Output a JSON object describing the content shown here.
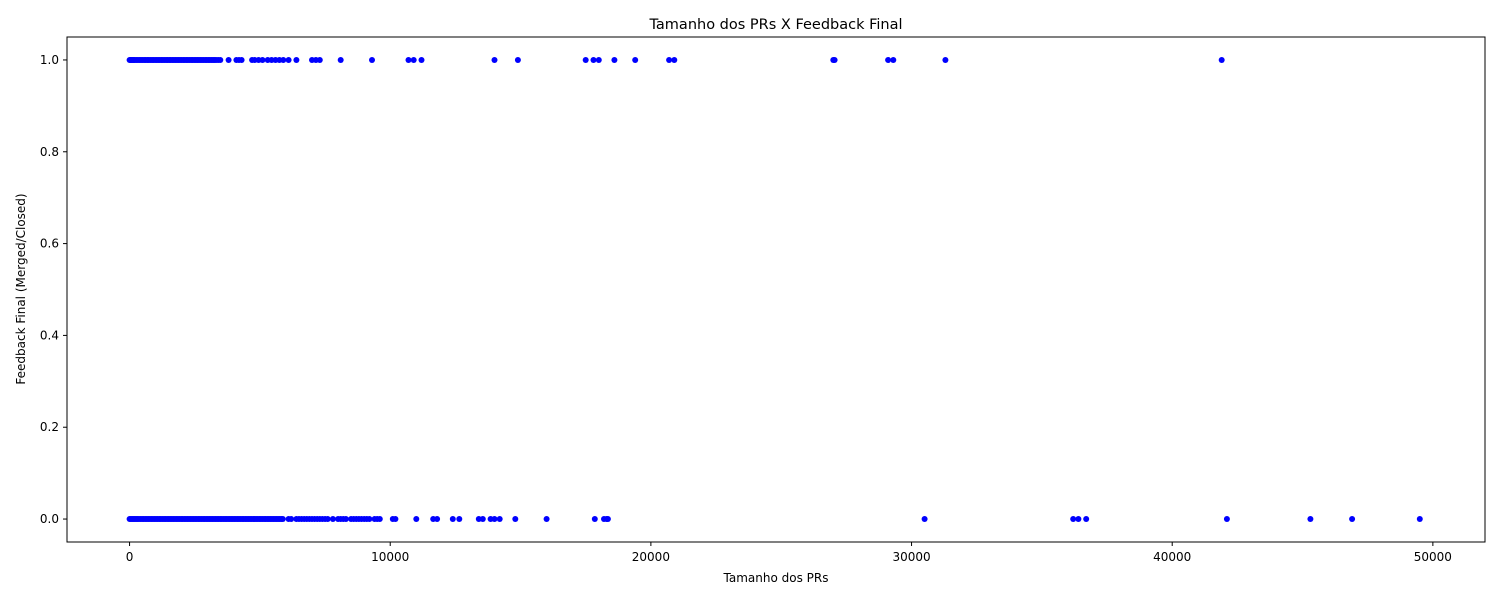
{
  "chart_data": {
    "type": "scatter",
    "title": "Tamanho dos PRs X Feedback Final",
    "xlabel": "Tamanho dos PRs",
    "ylabel": "Feedback Final (Merged/Closed)",
    "xlim": [
      -2400,
      52000
    ],
    "ylim": [
      -0.05,
      1.05
    ],
    "xticks": [
      0,
      10000,
      20000,
      30000,
      40000,
      50000
    ],
    "xtick_labels": [
      "0",
      "10000",
      "20000",
      "30000",
      "40000",
      "50000"
    ],
    "yticks": [
      0.0,
      0.2,
      0.4,
      0.6,
      0.8,
      1.0
    ],
    "ytick_labels": [
      "0.0",
      "0.2",
      "0.4",
      "0.6",
      "0.8",
      "1.0"
    ],
    "grid": false,
    "marker_color": "#0000ff",
    "series": [
      {
        "values_y": 1,
        "x": [
          0,
          40,
          80,
          120,
          160,
          200,
          260,
          320,
          380,
          440,
          500,
          560,
          620,
          680,
          740,
          800,
          860,
          920,
          980,
          1040,
          1100,
          1160,
          1220,
          1280,
          1340,
          1400,
          1460,
          1520,
          1580,
          1640,
          1700,
          1760,
          1820,
          1880,
          1940,
          2000,
          2060,
          2120,
          2180,
          2240,
          2300,
          2360,
          2420,
          2480,
          2540,
          2600,
          2660,
          2720,
          2780,
          2840,
          2900,
          2960,
          3020,
          3080,
          3140,
          3200,
          3260,
          3320,
          3400,
          3480,
          3800,
          4100,
          4200,
          4300,
          4700,
          4800,
          4950,
          5100,
          5300,
          5450,
          5600,
          5750,
          5900,
          6100,
          6400,
          7000,
          7150,
          7300,
          8100,
          9300,
          10700,
          10900,
          11200,
          14000,
          14900,
          17500,
          17800,
          18000,
          18600,
          19400,
          20700,
          20900,
          27000,
          27050,
          29100,
          29300,
          31300,
          41900
        ]
      },
      {
        "values_y": 0,
        "x": [
          0,
          50,
          100,
          150,
          200,
          250,
          300,
          360,
          420,
          480,
          540,
          600,
          660,
          720,
          780,
          840,
          900,
          960,
          1020,
          1080,
          1140,
          1200,
          1260,
          1320,
          1380,
          1440,
          1500,
          1560,
          1620,
          1680,
          1740,
          1800,
          1860,
          1920,
          1980,
          2040,
          2100,
          2160,
          2220,
          2280,
          2340,
          2400,
          2460,
          2520,
          2580,
          2640,
          2700,
          2760,
          2820,
          2880,
          2940,
          3000,
          3060,
          3120,
          3180,
          3240,
          3300,
          3360,
          3420,
          3480,
          3540,
          3600,
          3660,
          3720,
          3780,
          3840,
          3900,
          3960,
          4020,
          4080,
          4140,
          4200,
          4260,
          4320,
          4380,
          4440,
          4500,
          4560,
          4620,
          4680,
          4740,
          4800,
          4860,
          4920,
          4980,
          5040,
          5100,
          5160,
          5220,
          5280,
          5340,
          5400,
          5460,
          5520,
          5580,
          5640,
          5700,
          5760,
          5820,
          5880,
          6100,
          6200,
          6400,
          6500,
          6600,
          6700,
          6800,
          6900,
          7000,
          7100,
          7200,
          7300,
          7400,
          7500,
          7600,
          7800,
          8000,
          8100,
          8200,
          8300,
          8500,
          8600,
          8700,
          8800,
          8900,
          9000,
          9100,
          9200,
          9400,
          9500,
          9600,
          10100,
          10200,
          11000,
          11650,
          11800,
          12400,
          12650,
          13400,
          13550,
          13850,
          14000,
          14200,
          14800,
          16000,
          17850,
          18200,
          18300,
          18350,
          30500,
          36200,
          36400,
          36700,
          42100,
          45300,
          46900,
          49500
        ]
      }
    ]
  }
}
